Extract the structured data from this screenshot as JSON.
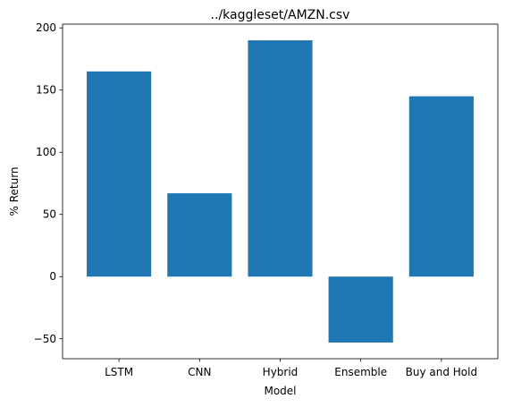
{
  "chart_data": {
    "type": "bar",
    "title": "../kaggleset/AMZN.csv",
    "xlabel": "Model",
    "ylabel": "% Return",
    "categories": [
      "LSTM",
      "CNN",
      "Hybrid",
      "Ensemble",
      "Buy and Hold"
    ],
    "values": [
      165,
      67,
      190,
      -53,
      145
    ],
    "ylim": [
      -66,
      203
    ],
    "yticks": [
      -50,
      0,
      50,
      100,
      150,
      200
    ],
    "ytick_labels": [
      "−50",
      "0",
      "50",
      "100",
      "150",
      "200"
    ],
    "bar_color": "#1f77b4",
    "grid": false,
    "legend": "none"
  }
}
